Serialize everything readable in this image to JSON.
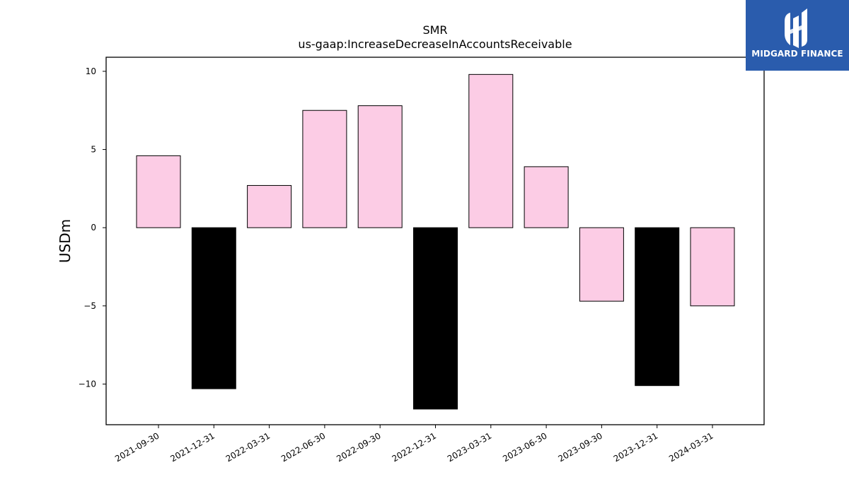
{
  "brand": {
    "name": "MIDGARD FINANCE",
    "bg_color": "#2a5cad",
    "icon": "midgard-logo-icon"
  },
  "chart_data": {
    "type": "bar",
    "title": "SMR",
    "subtitle": "us-gaap:IncreaseDecreaseInAccountsReceivable",
    "xlabel": "",
    "ylabel": "USDm",
    "categories": [
      "2021-09-30",
      "2021-12-31",
      "2022-03-31",
      "2022-06-30",
      "2022-09-30",
      "2022-12-31",
      "2023-03-31",
      "2023-06-30",
      "2023-09-30",
      "2023-12-31",
      "2024-03-31"
    ],
    "values": [
      4.6,
      -10.3,
      2.7,
      7.5,
      7.8,
      -11.6,
      9.8,
      3.9,
      -4.7,
      -10.1,
      -5.0
    ],
    "bar_colors": [
      "#fccce5",
      "#000000",
      "#fccce5",
      "#fccce5",
      "#fccce5",
      "#000000",
      "#fccce5",
      "#fccce5",
      "#fccce5",
      "#000000",
      "#fccce5"
    ],
    "ylim": [
      -12.6,
      10.9
    ],
    "yticks": [
      10,
      5,
      0,
      -5,
      -10
    ],
    "ytick_labels": [
      "10",
      "5",
      "0",
      "−5",
      "−10"
    ],
    "grid": false,
    "legend": "none"
  }
}
